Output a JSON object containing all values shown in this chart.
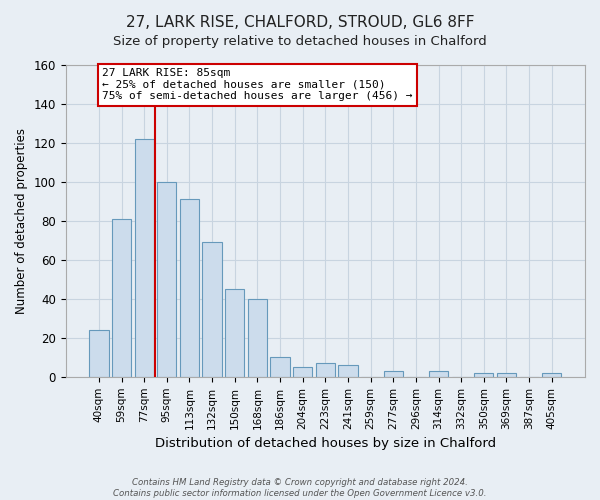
{
  "title": "27, LARK RISE, CHALFORD, STROUD, GL6 8FF",
  "subtitle": "Size of property relative to detached houses in Chalford",
  "xlabel": "Distribution of detached houses by size in Chalford",
  "ylabel": "Number of detached properties",
  "bar_labels": [
    "40sqm",
    "59sqm",
    "77sqm",
    "95sqm",
    "113sqm",
    "132sqm",
    "150sqm",
    "168sqm",
    "186sqm",
    "204sqm",
    "223sqm",
    "241sqm",
    "259sqm",
    "277sqm",
    "296sqm",
    "314sqm",
    "332sqm",
    "350sqm",
    "369sqm",
    "387sqm",
    "405sqm"
  ],
  "bar_values": [
    24,
    81,
    122,
    100,
    91,
    69,
    45,
    40,
    10,
    5,
    7,
    6,
    0,
    3,
    0,
    3,
    0,
    2,
    2,
    0,
    2
  ],
  "bar_color": "#ccdcec",
  "bar_edge_color": "#6699bb",
  "vline_color": "#cc0000",
  "ylim": [
    0,
    160
  ],
  "yticks": [
    0,
    20,
    40,
    60,
    80,
    100,
    120,
    140,
    160
  ],
  "annotation_title": "27 LARK RISE: 85sqm",
  "annotation_line1": "← 25% of detached houses are smaller (150)",
  "annotation_line2": "75% of semi-detached houses are larger (456) →",
  "footer_line1": "Contains HM Land Registry data © Crown copyright and database right 2024.",
  "footer_line2": "Contains public sector information licensed under the Open Government Licence v3.0.",
  "bg_color": "#e8eef4",
  "plot_bg_color": "#e8eef4",
  "grid_color": "#c8d4e0",
  "title_fontsize": 11,
  "subtitle_fontsize": 9.5
}
